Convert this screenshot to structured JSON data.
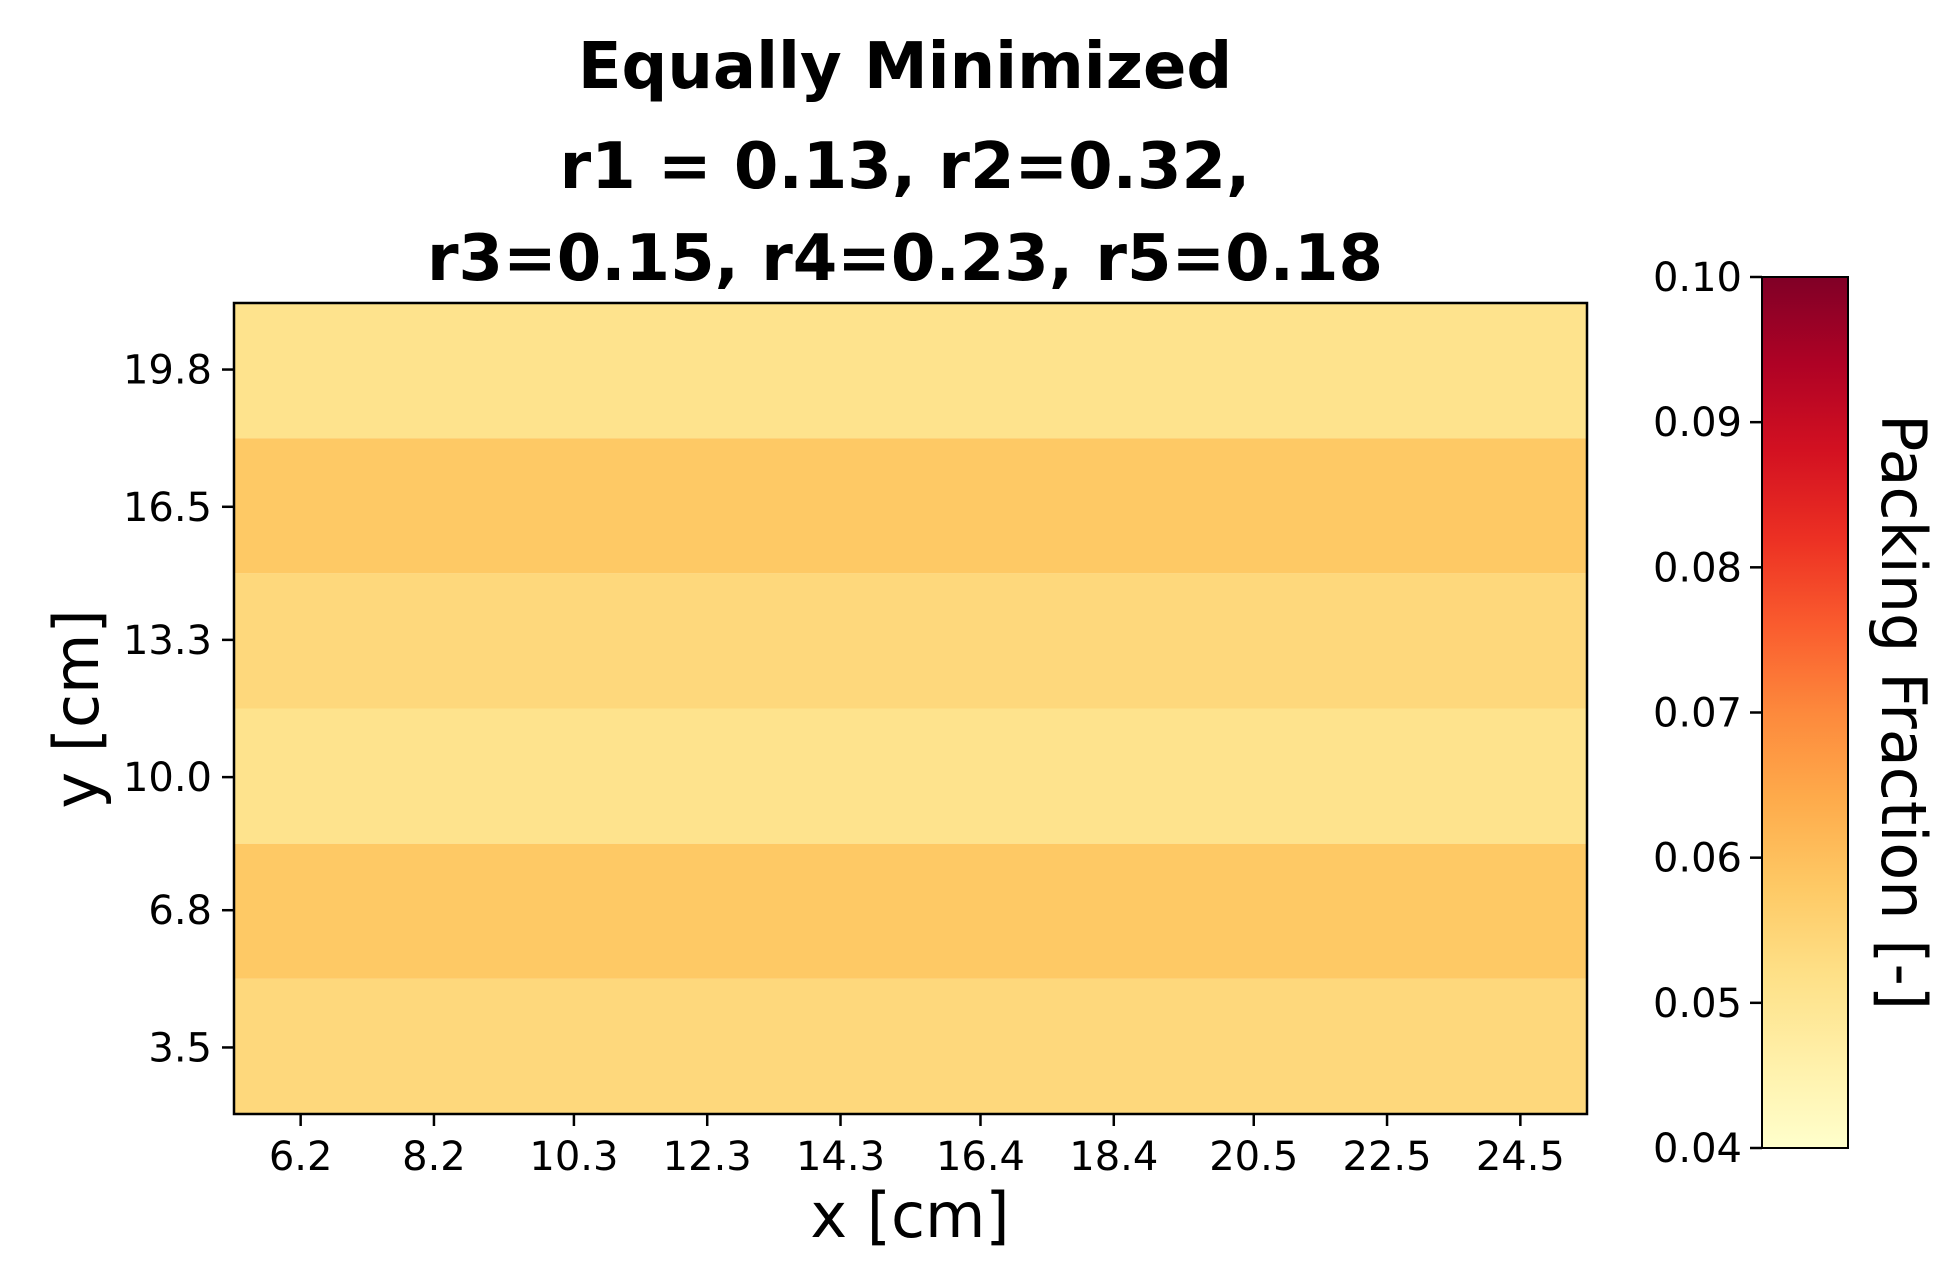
{
  "chart_data": {
    "type": "heatmap",
    "title_lines": [
      "Equally Minimized",
      "r1 = 0.13, r2=0.32,",
      "r3=0.15, r4=0.23, r5=0.18"
    ],
    "xlabel": "x [cm]",
    "ylabel": "y [cm]",
    "x_ticks": [
      "6.2",
      "8.2",
      "10.3",
      "12.3",
      "14.3",
      "16.4",
      "18.4",
      "20.5",
      "22.5",
      "24.5"
    ],
    "y_ticks": [
      "19.8",
      "16.5",
      "13.3",
      "10.0",
      "6.8",
      "3.5"
    ],
    "xlim": [
      5.2,
      25.5
    ],
    "ylim": [
      1.9,
      21.4
    ],
    "y_bands": [
      {
        "y_center": 19.8,
        "value": 0.051
      },
      {
        "y_center": 16.5,
        "value": 0.058
      },
      {
        "y_center": 13.3,
        "value": 0.054
      },
      {
        "y_center": 10.0,
        "value": 0.051
      },
      {
        "y_center": 6.8,
        "value": 0.058
      },
      {
        "y_center": 3.5,
        "value": 0.054
      }
    ],
    "colorbar": {
      "label": "Packing Fraction [-]",
      "min": 0.04,
      "max": 0.1,
      "ticks": [
        "0.10",
        "0.09",
        "0.08",
        "0.07",
        "0.06",
        "0.05",
        "0.04"
      ],
      "colormap": "YlOrRd",
      "stops": [
        "#ffffcc",
        "#fff0a9",
        "#fee087",
        "#fec965",
        "#feab4b",
        "#fd893c",
        "#fa5c2e",
        "#ec3023",
        "#d31121",
        "#af0225",
        "#800026"
      ]
    }
  }
}
